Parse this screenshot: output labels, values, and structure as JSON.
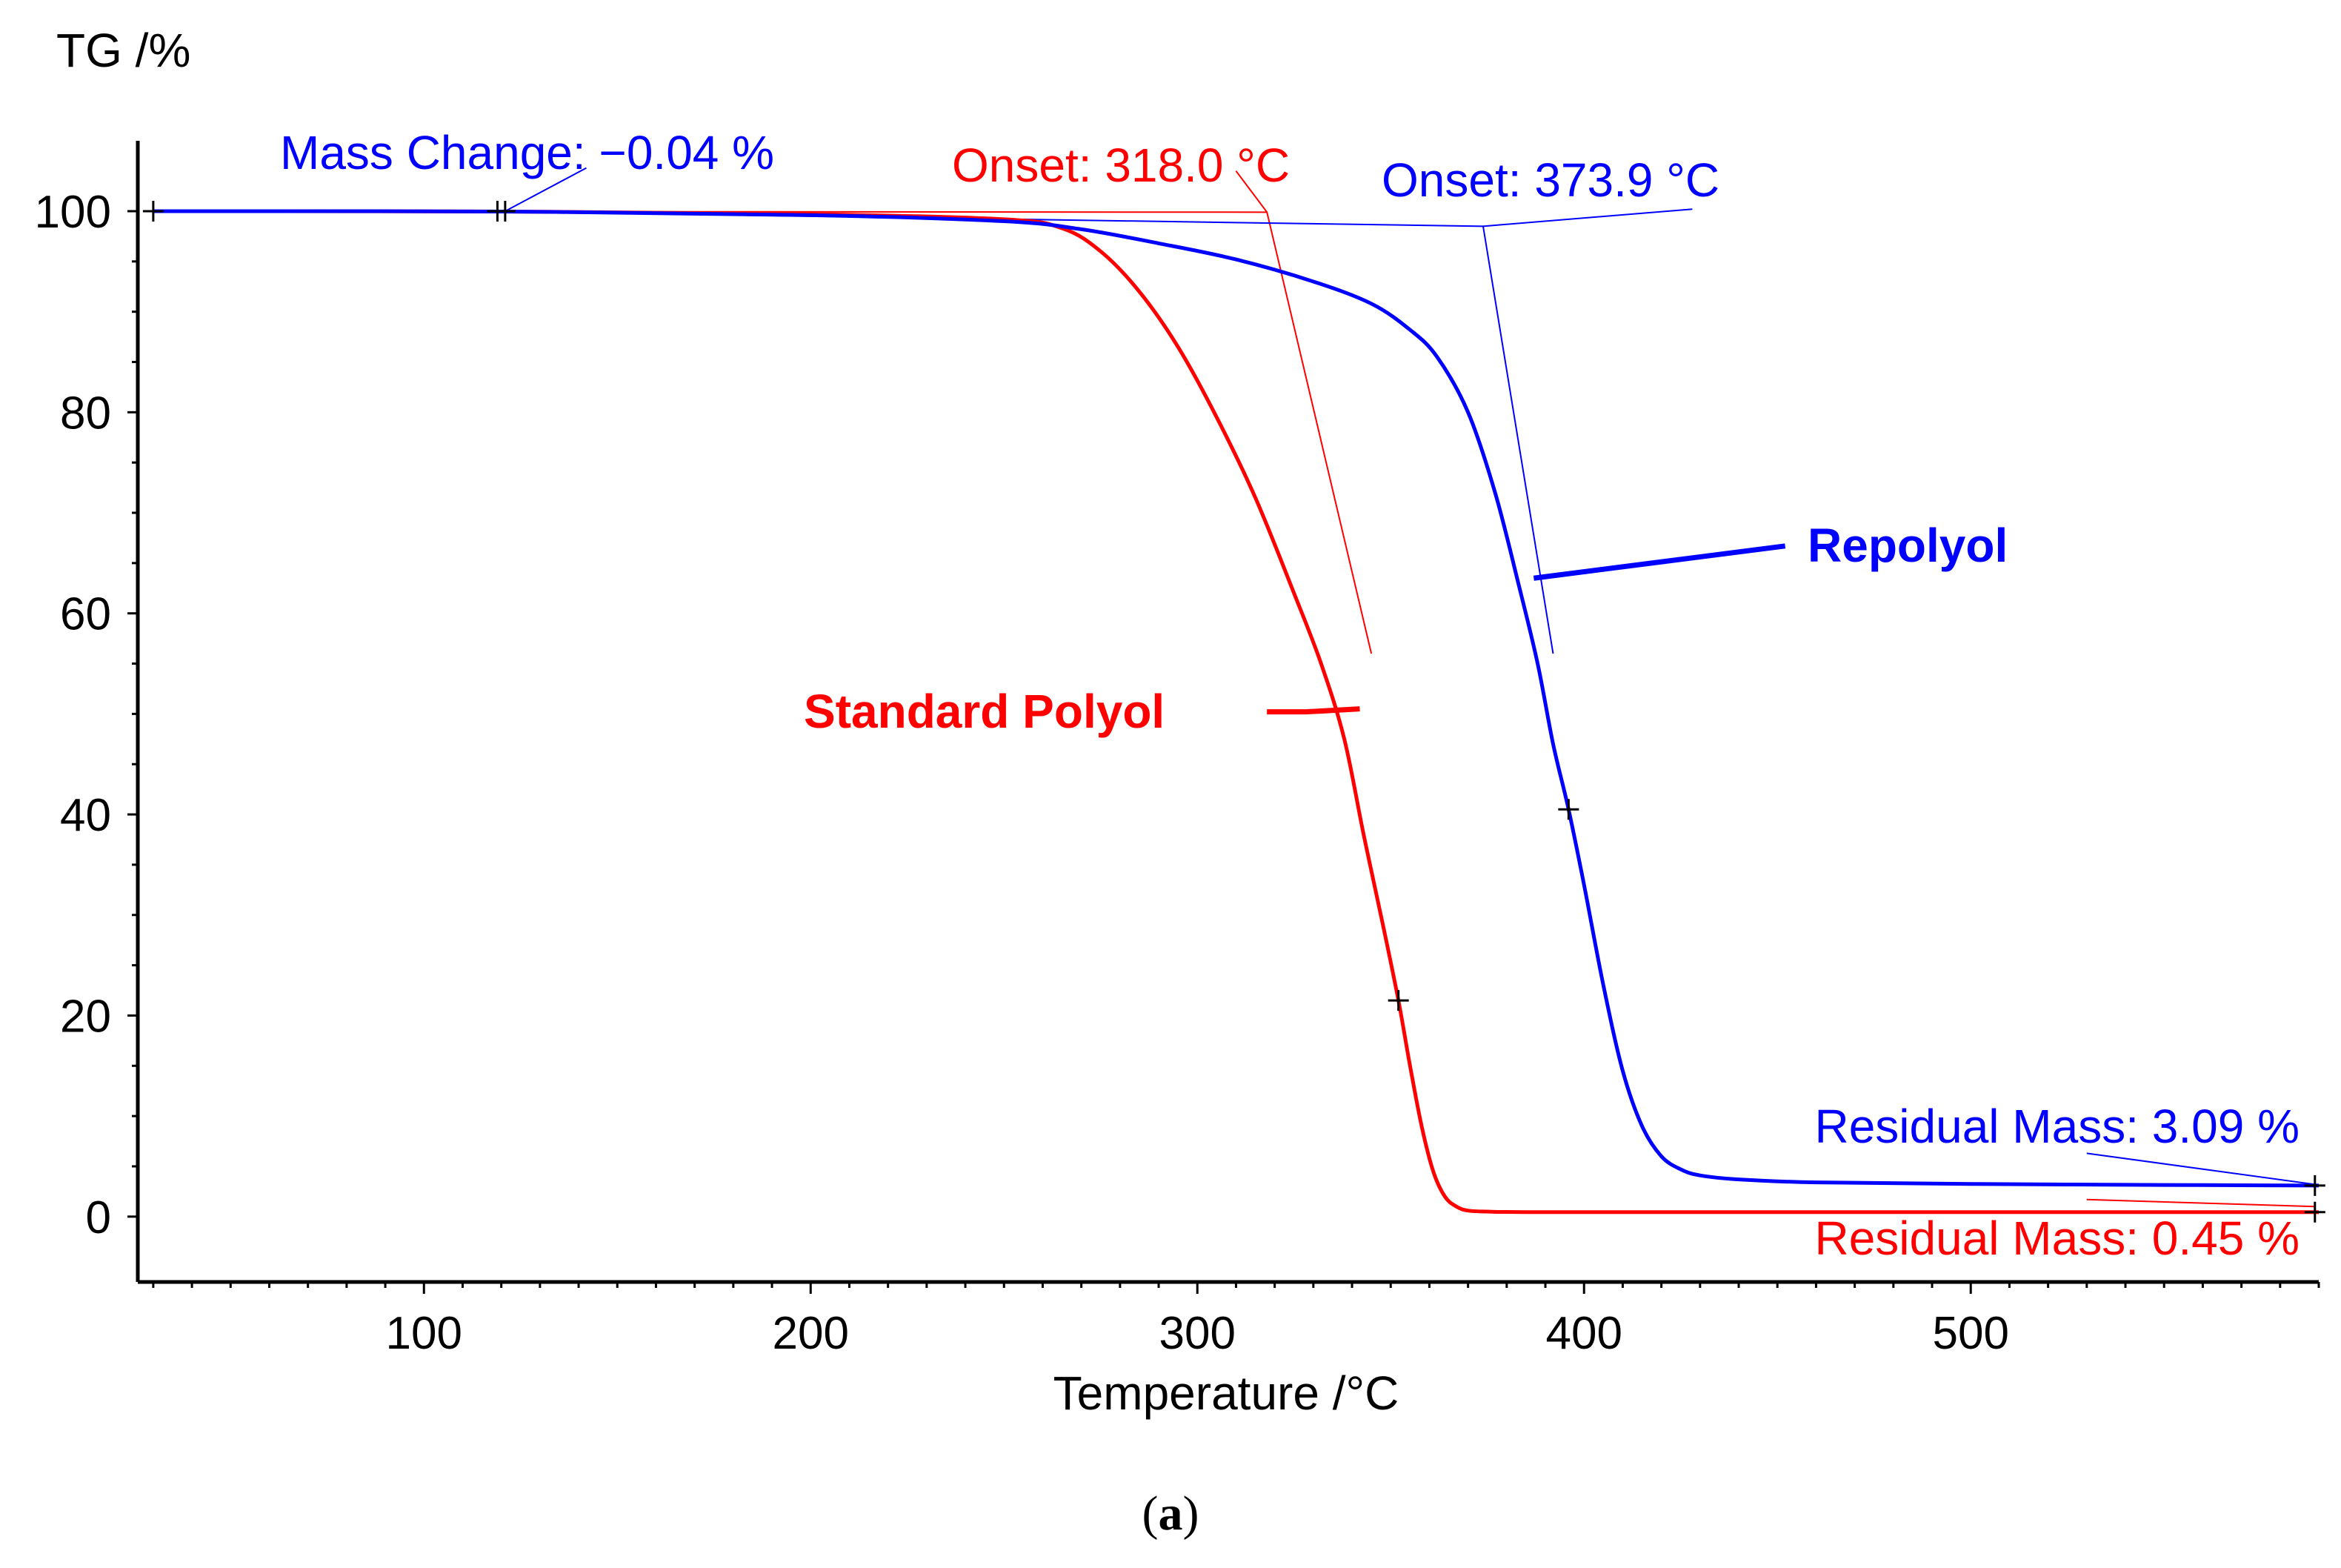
{
  "chart_data": {
    "type": "line",
    "ylabel": "TG /%",
    "xlabel": "Temperature /°C",
    "caption": "(a)",
    "caption_letter": "a",
    "xlim": [
      26,
      590
    ],
    "ylim": [
      -6.5,
      107
    ],
    "x_ticks": [
      100,
      200,
      300,
      400,
      500
    ],
    "y_ticks": [
      0,
      20,
      40,
      60,
      80,
      100
    ],
    "colors": {
      "blue": "#0000ff",
      "red": "#ff0000",
      "axis": "#000000"
    },
    "series": [
      {
        "name": "Repolyol",
        "color": "#0000ff",
        "x": [
          30,
          120,
          200,
          250,
          270,
          290,
          310,
          330,
          345,
          355,
          362,
          370,
          377,
          383,
          388,
          392,
          396,
          400,
          405,
          410,
          415,
          420,
          425,
          430,
          440,
          460,
          500,
          550,
          590
        ],
        "y": [
          100,
          99.96,
          99.6,
          99.0,
          98.2,
          96.8,
          95.2,
          93.0,
          90.8,
          88.2,
          85.5,
          80.0,
          72.0,
          63.0,
          55.0,
          47.0,
          40.5,
          33.0,
          23.0,
          14.5,
          9.0,
          6.0,
          4.7,
          4.1,
          3.7,
          3.4,
          3.25,
          3.15,
          3.09
        ]
      },
      {
        "name": "Standard Polyol",
        "color": "#ff0000",
        "x": [
          30,
          120,
          200,
          250,
          265,
          275,
          285,
          295,
          305,
          315,
          325,
          332,
          338,
          343,
          348,
          352,
          355,
          358,
          361,
          364,
          367,
          370,
          375,
          385,
          420,
          500,
          590
        ],
        "y": [
          100,
          99.96,
          99.7,
          99.2,
          98.3,
          96.0,
          92.0,
          86.5,
          79.5,
          71.5,
          62.0,
          55.0,
          47.5,
          38.0,
          29.0,
          21.5,
          15.0,
          9.0,
          4.5,
          2.0,
          1.0,
          0.6,
          0.5,
          0.45,
          0.45,
          0.45,
          0.45
        ]
      }
    ],
    "markers": [
      {
        "series": "Repolyol",
        "x": 30,
        "y": 100
      },
      {
        "series": "Repolyol",
        "x": 119,
        "y": 100
      },
      {
        "series": "Repolyol",
        "x": 121,
        "y": 100
      },
      {
        "series": "Repolyol",
        "x": 396,
        "y": 40.5
      },
      {
        "series": "Repolyol",
        "x": 589,
        "y": 3.09
      },
      {
        "series": "Standard Polyol",
        "x": 352,
        "y": 21.5
      },
      {
        "series": "Standard Polyol",
        "x": 589,
        "y": 0.45
      }
    ],
    "annotations": {
      "mass_change": "Mass Change: −0.04 %",
      "onset_red": "Onset: 318.0 °C",
      "onset_blue": "Onset: 373.9 °C",
      "residual_blue": "Residual Mass: 3.09 %",
      "residual_red": "Residual Mass: 0.45 %",
      "label_repolyol": "Repolyol",
      "label_standard": "Standard Polyol"
    }
  }
}
